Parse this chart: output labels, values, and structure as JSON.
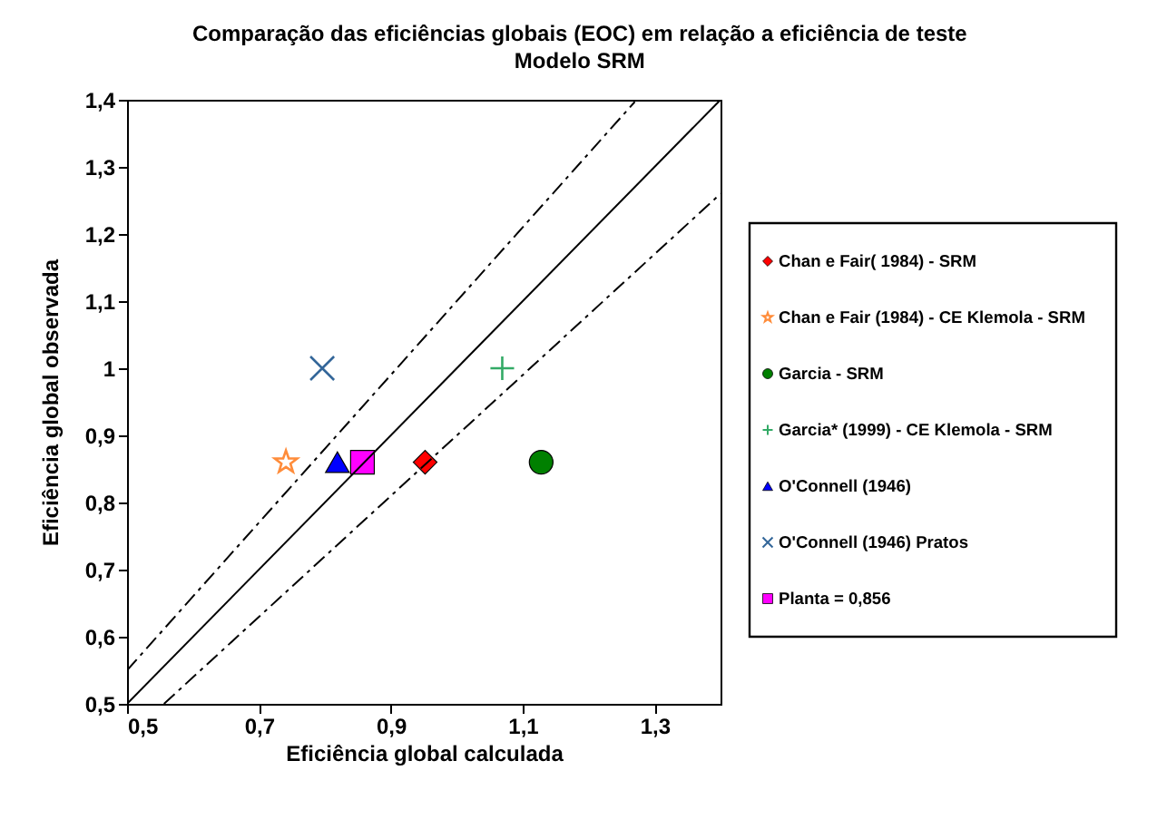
{
  "chart_data": {
    "type": "scatter",
    "title": "Comparação das eficiências globais (EOC) em relação a eficiência de teste",
    "subtitle": "Modelo SRM",
    "xlabel": "Eficiência global calculada",
    "ylabel": "Eficiência global observada",
    "xlim": [
      0.5,
      1.4
    ],
    "ylim": [
      0.5,
      1.4
    ],
    "xticks": [
      {
        "value": 0.5,
        "label": "0,5"
      },
      {
        "value": 0.7,
        "label": "0,7"
      },
      {
        "value": 0.9,
        "label": "0,9"
      },
      {
        "value": 1.1,
        "label": "1,1"
      },
      {
        "value": 1.3,
        "label": "1,3"
      }
    ],
    "yticks": [
      {
        "value": 0.5,
        "label": "0,5"
      },
      {
        "value": 0.6,
        "label": "0,6"
      },
      {
        "value": 0.7,
        "label": "0,7"
      },
      {
        "value": 0.8,
        "label": "0,8"
      },
      {
        "value": 0.9,
        "label": "0,9"
      },
      1,
      {
        "value": 1.1,
        "label": "1,1"
      },
      {
        "value": 1.2,
        "label": "1,2"
      },
      {
        "value": 1.3,
        "label": "1,3"
      },
      {
        "value": 1.4,
        "label": "1,4"
      }
    ],
    "grid": false,
    "legend": "right",
    "series": [
      {
        "name": "Chan e Fair( 1984) - SRM",
        "color": "#ff0000",
        "marker": "diamond",
        "x": [
          0.952
        ],
        "values": [
          0.86
        ]
      },
      {
        "name": "Chan e Fair (1984) - CE Klemola - SRM",
        "color": "#ff8c3a",
        "marker": "star",
        "x": [
          0.741
        ],
        "values": [
          0.86
        ]
      },
      {
        "name": "Garcia - SRM",
        "color": "#008000",
        "marker": "circle",
        "x": [
          1.128
        ],
        "values": [
          0.86
        ]
      },
      {
        "name": "Garcia* (1999) - CE Klemola - SRM",
        "color": "#33aa66",
        "marker": "cross",
        "x": [
          1.069
        ],
        "values": [
          1.0
        ]
      },
      {
        "name": "O'Connell (1946)",
        "color": "#0000ff",
        "marker": "triangle",
        "x": [
          0.819
        ],
        "values": [
          0.86
        ]
      },
      {
        "name": "O'Connell (1946) Pratos",
        "color": "#336699",
        "marker": "x",
        "x": [
          0.796
        ],
        "values": [
          1.0
        ]
      },
      {
        "name": "Planta = 0,856",
        "color": "#ff00ff",
        "marker": "square",
        "x": [
          0.857
        ],
        "values": [
          0.86
        ]
      },
      {
        "type": "line",
        "color": "#000000",
        "line_style": "solid",
        "x": [
          0.5,
          1.4
        ],
        "values": [
          0.5,
          1.4
        ]
      },
      {
        "type": "line",
        "color": "#000000",
        "line_style": "dashdot",
        "x": [
          0.5,
          1.27
        ],
        "values": [
          0.55,
          1.397
        ]
      },
      {
        "type": "line",
        "color": "#000000",
        "line_style": "dashdot",
        "x": [
          0.556,
          1.4
        ],
        "values": [
          0.5,
          1.26
        ]
      }
    ]
  }
}
